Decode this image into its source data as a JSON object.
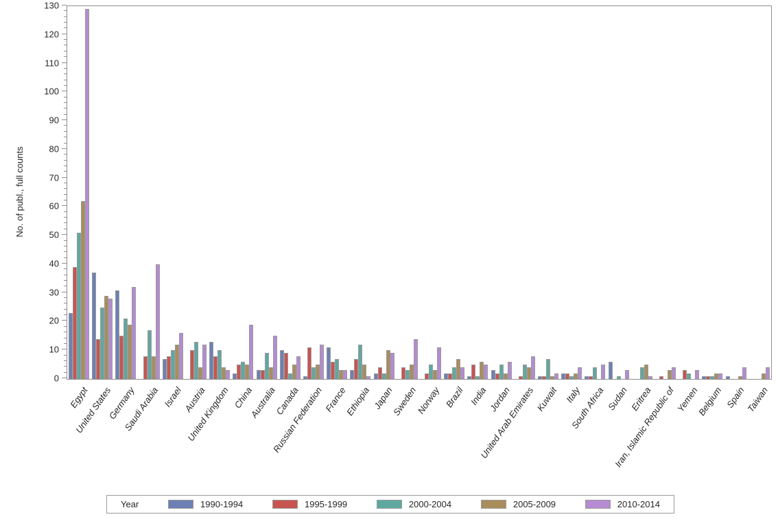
{
  "colors": {
    "background": "#ffffff",
    "axis": "#8f8f8f",
    "bar_border": "#9a9a9a",
    "text": "#262626",
    "series_colors": [
      "#6c80b3",
      "#c85450",
      "#5fa8a0",
      "#a98d5c",
      "#b58bd1"
    ]
  },
  "legend": {
    "title": "Year"
  },
  "chart_data": {
    "type": "bar",
    "title": "",
    "xlabel": "",
    "ylabel": "No. of publ., full counts",
    "ylim": [
      0,
      130
    ],
    "ytick_step": 10,
    "yminor_step": 2,
    "grid": false,
    "legend_position": "bottom",
    "legend_title": "Year",
    "categories": [
      "Egypt",
      "United States",
      "Germany",
      "Saudi Arabia",
      "Israel",
      "Austria",
      "United Kingdom",
      "China",
      "Australia",
      "Canada",
      "Russian Federation",
      "France",
      "Ethiopia",
      "Japan",
      "Sweden",
      "Norway",
      "Brazil",
      "India",
      "Jordan",
      "United Arab Emirates",
      "Kuwait",
      "Italy",
      "South Africa",
      "Sudan",
      "Eritrea",
      "Iran, Islamic Republic of",
      "Yemen",
      "Belgium",
      "Spain",
      "Taiwan"
    ],
    "series": [
      {
        "name": "1990-1994",
        "color": "#6c80b3",
        "values": [
          23,
          37,
          31,
          0,
          7,
          0,
          13,
          2,
          3,
          10,
          1,
          11,
          3,
          2,
          0,
          0,
          2,
          1,
          3,
          0,
          1,
          2,
          1,
          6,
          0,
          0,
          0,
          1,
          1,
          0
        ]
      },
      {
        "name": "1995-1999",
        "color": "#c85450",
        "values": [
          39,
          14,
          15,
          8,
          8,
          10,
          8,
          5,
          3,
          9,
          11,
          6,
          7,
          4,
          4,
          2,
          2,
          5,
          2,
          1,
          1,
          2,
          1,
          0,
          0,
          1,
          3,
          1,
          0,
          0
        ]
      },
      {
        "name": "2000-2004",
        "color": "#5fa8a0",
        "values": [
          51,
          25,
          21,
          17,
          10,
          13,
          10,
          6,
          9,
          2,
          4,
          7,
          12,
          2,
          3,
          5,
          4,
          1,
          5,
          5,
          7,
          1,
          4,
          1,
          4,
          0,
          2,
          1,
          0,
          0
        ]
      },
      {
        "name": "2005-2009",
        "color": "#a98d5c",
        "values": [
          62,
          29,
          19,
          8,
          12,
          4,
          4,
          5,
          4,
          5,
          5,
          3,
          5,
          10,
          5,
          3,
          7,
          6,
          2,
          4,
          1,
          2,
          0,
          0,
          5,
          3,
          0,
          2,
          1,
          2
        ]
      },
      {
        "name": "2010-2014",
        "color": "#b58bd1",
        "values": [
          129,
          28,
          32,
          40,
          16,
          12,
          3,
          19,
          15,
          8,
          12,
          3,
          1,
          9,
          14,
          11,
          4,
          5,
          6,
          8,
          2,
          4,
          5,
          3,
          1,
          4,
          3,
          2,
          4,
          4
        ]
      }
    ]
  }
}
